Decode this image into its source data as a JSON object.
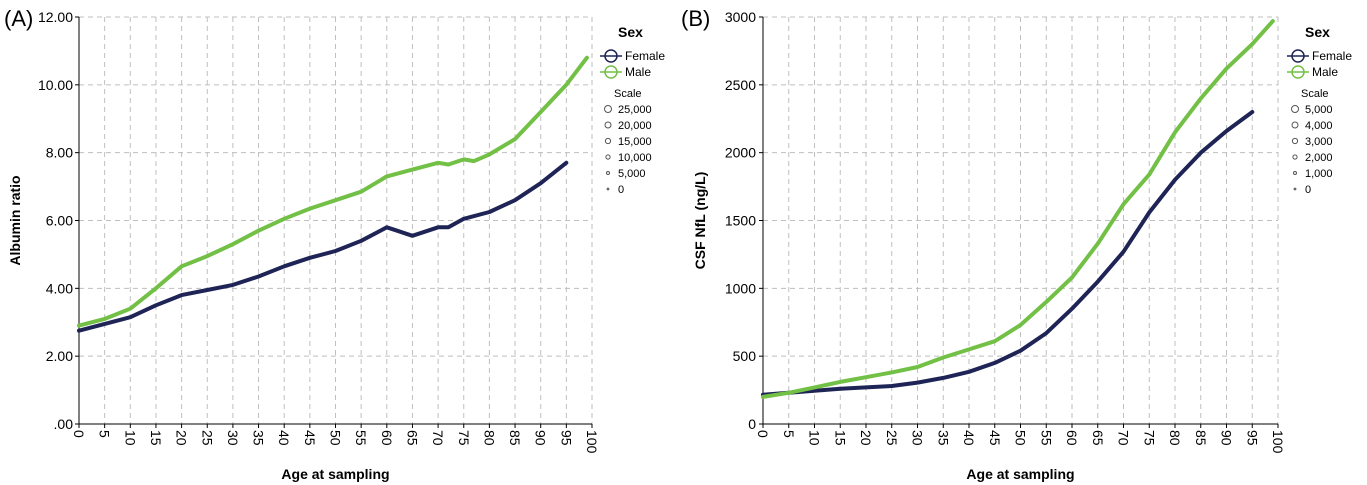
{
  "chart_data": [
    {
      "panel_label": "(A)",
      "type": "line",
      "xlabel": "Age at sampling",
      "ylabel": "Albumin ratio",
      "xlim": [
        0,
        100
      ],
      "ylim": [
        0,
        12
      ],
      "x_ticks": [
        "0",
        "5",
        "10",
        "15",
        "20",
        "25",
        "30",
        "35",
        "40",
        "45",
        "50",
        "55",
        "60",
        "65",
        "70",
        "75",
        "80",
        "85",
        "90",
        "95",
        "100"
      ],
      "y_ticks": [
        ".00",
        "2.00",
        "4.00",
        "6.00",
        "8.00",
        "10.00",
        "12.00"
      ],
      "y_tick_values": [
        0,
        2,
        4,
        6,
        8,
        10,
        12
      ],
      "grid": true,
      "legend": {
        "title": "Sex",
        "entries": [
          "Female",
          "Male"
        ],
        "scale_title": "Scale",
        "scale_values": [
          "25,000",
          "20,000",
          "15,000",
          "10,000",
          "5,000",
          "0"
        ]
      },
      "series": [
        {
          "name": "Female",
          "color": "#1f2456",
          "x": [
            0,
            5,
            10,
            15,
            20,
            25,
            30,
            35,
            40,
            45,
            50,
            55,
            60,
            62,
            65,
            70,
            72,
            75,
            80,
            85,
            90,
            95
          ],
          "values": [
            2.75,
            2.95,
            3.15,
            3.5,
            3.8,
            3.95,
            4.1,
            4.35,
            4.65,
            4.9,
            5.1,
            5.4,
            5.8,
            5.7,
            5.55,
            5.8,
            5.8,
            6.05,
            6.25,
            6.6,
            7.1,
            7.7
          ]
        },
        {
          "name": "Male",
          "color": "#72c046",
          "x": [
            0,
            5,
            10,
            15,
            20,
            25,
            30,
            35,
            40,
            45,
            50,
            55,
            60,
            65,
            70,
            72,
            75,
            77,
            80,
            85,
            90,
            95,
            99
          ],
          "values": [
            2.9,
            3.1,
            3.4,
            4.0,
            4.65,
            4.95,
            5.3,
            5.7,
            6.05,
            6.35,
            6.6,
            6.85,
            7.3,
            7.5,
            7.7,
            7.65,
            7.8,
            7.75,
            7.95,
            8.4,
            9.2,
            10.0,
            10.8
          ]
        }
      ]
    },
    {
      "panel_label": "(B)",
      "type": "line",
      "xlabel": "Age at sampling",
      "ylabel": "CSF NfL (ng/L)",
      "xlim": [
        0,
        100
      ],
      "ylim": [
        0,
        3000
      ],
      "x_ticks": [
        "0",
        "5",
        "10",
        "15",
        "20",
        "25",
        "30",
        "35",
        "40",
        "45",
        "50",
        "55",
        "60",
        "65",
        "70",
        "75",
        "80",
        "85",
        "90",
        "95",
        "100"
      ],
      "y_ticks": [
        "0",
        "500",
        "1000",
        "1500",
        "2000",
        "2500",
        "3000"
      ],
      "y_tick_values": [
        0,
        500,
        1000,
        1500,
        2000,
        2500,
        3000
      ],
      "grid": true,
      "legend": {
        "title": "Sex",
        "entries": [
          "Female",
          "Male"
        ],
        "scale_title": "Scale",
        "scale_values": [
          "5,000",
          "4,000",
          "3,000",
          "2,000",
          "1,000",
          "0"
        ]
      },
      "series": [
        {
          "name": "Female",
          "color": "#1f2456",
          "x": [
            0,
            5,
            10,
            15,
            20,
            25,
            30,
            35,
            40,
            45,
            50,
            55,
            60,
            65,
            70,
            75,
            80,
            85,
            90,
            95
          ],
          "values": [
            215,
            230,
            245,
            260,
            270,
            280,
            305,
            340,
            385,
            450,
            540,
            670,
            850,
            1050,
            1270,
            1560,
            1800,
            2000,
            2160,
            2300
          ]
        },
        {
          "name": "Male",
          "color": "#72c046",
          "x": [
            0,
            5,
            10,
            15,
            20,
            25,
            30,
            35,
            40,
            45,
            50,
            55,
            60,
            65,
            70,
            75,
            80,
            85,
            90,
            95,
            99
          ],
          "values": [
            200,
            230,
            270,
            310,
            345,
            380,
            420,
            490,
            550,
            610,
            730,
            900,
            1080,
            1330,
            1620,
            1840,
            2150,
            2400,
            2620,
            2800,
            2970
          ]
        }
      ]
    }
  ]
}
